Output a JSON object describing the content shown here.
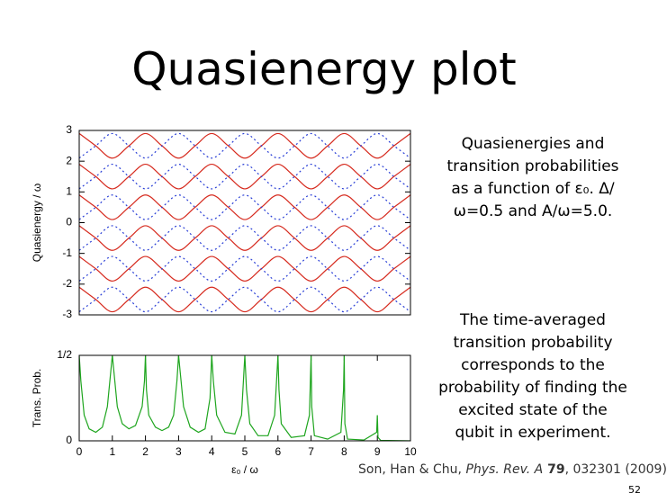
{
  "title": "Quasienergy plot",
  "chart_data": [
    {
      "type": "line",
      "ylabel": "Quasienergy / ω",
      "xlim": [
        0,
        10
      ],
      "ylim": [
        -3,
        3
      ],
      "yticks": [
        -3,
        -2,
        -1,
        0,
        1,
        2,
        3
      ],
      "x": [
        0,
        0.5,
        1,
        1.5,
        2,
        2.5,
        3,
        3.5,
        4,
        4.5,
        5,
        5.5,
        6,
        6.5,
        7,
        7.5,
        8,
        8.5,
        9,
        9.5,
        10
      ],
      "series": [
        {
          "color": "#d62a1e",
          "style": "solid",
          "values": [
            -2.1,
            -2.5,
            -2.9,
            -2.5,
            -2.1,
            -2.5,
            -2.9,
            -2.5,
            -2.1,
            -2.5,
            -2.9,
            -2.5,
            -2.1,
            -2.5,
            -2.9,
            -2.5,
            -2.1,
            -2.5,
            -2.9,
            -2.5,
            -2.1
          ]
        },
        {
          "color": "#d62a1e",
          "style": "solid",
          "values": [
            -1.1,
            -1.5,
            -1.9,
            -1.5,
            -1.1,
            -1.5,
            -1.9,
            -1.5,
            -1.1,
            -1.5,
            -1.9,
            -1.5,
            -1.1,
            -1.5,
            -1.9,
            -1.5,
            -1.1,
            -1.5,
            -1.9,
            -1.5,
            -1.1
          ]
        },
        {
          "color": "#d62a1e",
          "style": "solid",
          "values": [
            -0.1,
            -0.5,
            -0.9,
            -0.5,
            -0.1,
            -0.5,
            -0.9,
            -0.5,
            -0.1,
            -0.5,
            -0.9,
            -0.5,
            -0.1,
            -0.5,
            -0.9,
            -0.5,
            -0.1,
            -0.5,
            -0.9,
            -0.5,
            -0.1
          ]
        },
        {
          "color": "#d62a1e",
          "style": "solid",
          "values": [
            0.9,
            0.5,
            0.1,
            0.5,
            0.9,
            0.5,
            0.1,
            0.5,
            0.9,
            0.5,
            0.1,
            0.5,
            0.9,
            0.5,
            0.1,
            0.5,
            0.9,
            0.5,
            0.1,
            0.5,
            0.9
          ]
        },
        {
          "color": "#d62a1e",
          "style": "solid",
          "values": [
            1.9,
            1.5,
            1.1,
            1.5,
            1.9,
            1.5,
            1.1,
            1.5,
            1.9,
            1.5,
            1.1,
            1.5,
            1.9,
            1.5,
            1.1,
            1.5,
            1.9,
            1.5,
            1.1,
            1.5,
            1.9
          ]
        },
        {
          "color": "#d62a1e",
          "style": "solid",
          "values": [
            2.9,
            2.5,
            2.1,
            2.5,
            2.9,
            2.5,
            2.1,
            2.5,
            2.9,
            2.5,
            2.1,
            2.5,
            2.9,
            2.5,
            2.1,
            2.5,
            2.9,
            2.5,
            2.1,
            2.5,
            2.9
          ]
        },
        {
          "color": "#2a3fd6",
          "style": "dotted",
          "values": [
            -2.9,
            -2.5,
            -2.1,
            -2.5,
            -2.9,
            -2.5,
            -2.1,
            -2.5,
            -2.9,
            -2.5,
            -2.1,
            -2.5,
            -2.9,
            -2.5,
            -2.1,
            -2.5,
            -2.9,
            -2.5,
            -2.1,
            -2.5,
            -2.9
          ]
        },
        {
          "color": "#2a3fd6",
          "style": "dotted",
          "values": [
            -1.9,
            -1.5,
            -1.1,
            -1.5,
            -1.9,
            -1.5,
            -1.1,
            -1.5,
            -1.9,
            -1.5,
            -1.1,
            -1.5,
            -1.9,
            -1.5,
            -1.1,
            -1.5,
            -1.9,
            -1.5,
            -1.1,
            -1.5,
            -1.9
          ]
        },
        {
          "color": "#2a3fd6",
          "style": "dotted",
          "values": [
            -0.9,
            -0.5,
            -0.1,
            -0.5,
            -0.9,
            -0.5,
            -0.1,
            -0.5,
            -0.9,
            -0.5,
            -0.1,
            -0.5,
            -0.9,
            -0.5,
            -0.1,
            -0.5,
            -0.9,
            -0.5,
            -0.1,
            -0.5,
            -0.9
          ]
        },
        {
          "color": "#2a3fd6",
          "style": "dotted",
          "values": [
            0.1,
            0.5,
            0.9,
            0.5,
            0.1,
            0.5,
            0.9,
            0.5,
            0.1,
            0.5,
            0.9,
            0.5,
            0.1,
            0.5,
            0.9,
            0.5,
            0.1,
            0.5,
            0.9,
            0.5,
            0.1
          ]
        },
        {
          "color": "#2a3fd6",
          "style": "dotted",
          "values": [
            1.1,
            1.5,
            1.9,
            1.5,
            1.1,
            1.5,
            1.9,
            1.5,
            1.1,
            1.5,
            1.9,
            1.5,
            1.1,
            1.5,
            1.9,
            1.5,
            1.1,
            1.5,
            1.9,
            1.5,
            1.1
          ]
        },
        {
          "color": "#2a3fd6",
          "style": "dotted",
          "values": [
            2.1,
            2.5,
            2.9,
            2.5,
            2.1,
            2.5,
            2.9,
            2.5,
            2.1,
            2.5,
            2.9,
            2.5,
            2.1,
            2.5,
            2.9,
            2.5,
            2.1,
            2.5,
            2.9,
            2.5,
            2.1
          ]
        }
      ]
    },
    {
      "type": "line",
      "ylabel": "Trans. Prob.",
      "xlabel": "ε₀ / ω",
      "xlim": [
        0,
        10
      ],
      "ylim": [
        0,
        0.5
      ],
      "xticks": [
        0,
        1,
        2,
        3,
        4,
        5,
        6,
        7,
        8,
        9,
        10
      ],
      "yticks": [
        0,
        {
          "value": 0.5,
          "label": "1/2"
        }
      ],
      "x": [
        0,
        0.05,
        0.15,
        0.3,
        0.5,
        0.7,
        0.85,
        0.95,
        1,
        1.05,
        1.15,
        1.3,
        1.5,
        1.7,
        1.9,
        1.97,
        2,
        2.03,
        2.1,
        2.3,
        2.5,
        2.7,
        2.85,
        2.95,
        3,
        3.05,
        3.15,
        3.35,
        3.6,
        3.8,
        3.95,
        4,
        4.05,
        4.15,
        4.4,
        4.7,
        4.9,
        5,
        5.05,
        5.15,
        5.4,
        5.7,
        5.9,
        6,
        6.03,
        6.1,
        6.4,
        6.8,
        6.95,
        7,
        7.02,
        7.1,
        7.5,
        7.9,
        7.98,
        8,
        8.02,
        8.1,
        8.6,
        8.98,
        9,
        9.02,
        9.1,
        10
      ],
      "series": [
        {
          "color": "#1ea51e",
          "style": "solid",
          "values": [
            0.5,
            0.35,
            0.15,
            0.07,
            0.05,
            0.08,
            0.2,
            0.4,
            0.5,
            0.4,
            0.2,
            0.1,
            0.07,
            0.09,
            0.2,
            0.35,
            0.5,
            0.3,
            0.15,
            0.08,
            0.06,
            0.08,
            0.15,
            0.35,
            0.5,
            0.4,
            0.2,
            0.08,
            0.05,
            0.07,
            0.25,
            0.5,
            0.35,
            0.15,
            0.05,
            0.04,
            0.15,
            0.5,
            0.3,
            0.1,
            0.03,
            0.03,
            0.15,
            0.5,
            0.3,
            0.1,
            0.02,
            0.03,
            0.15,
            0.5,
            0.2,
            0.03,
            0.01,
            0.05,
            0.3,
            0.5,
            0.1,
            0.01,
            0.005,
            0.05,
            0.15,
            0.02,
            0.003,
            0
          ]
        }
      ]
    }
  ],
  "notes": [
    "Quasienergies and transition probabilities as a function of ε₀. Δ/ω=0.5 and A/ω=5.0.",
    "The time-averaged transition probability corresponds to the probability of finding the excited state of the qubit in experiment."
  ],
  "citation": [
    "Son, Han & Chu, ",
    "Phys. Rev. A",
    " 79",
    ", 032301 (2009)"
  ],
  "page_number": "52"
}
